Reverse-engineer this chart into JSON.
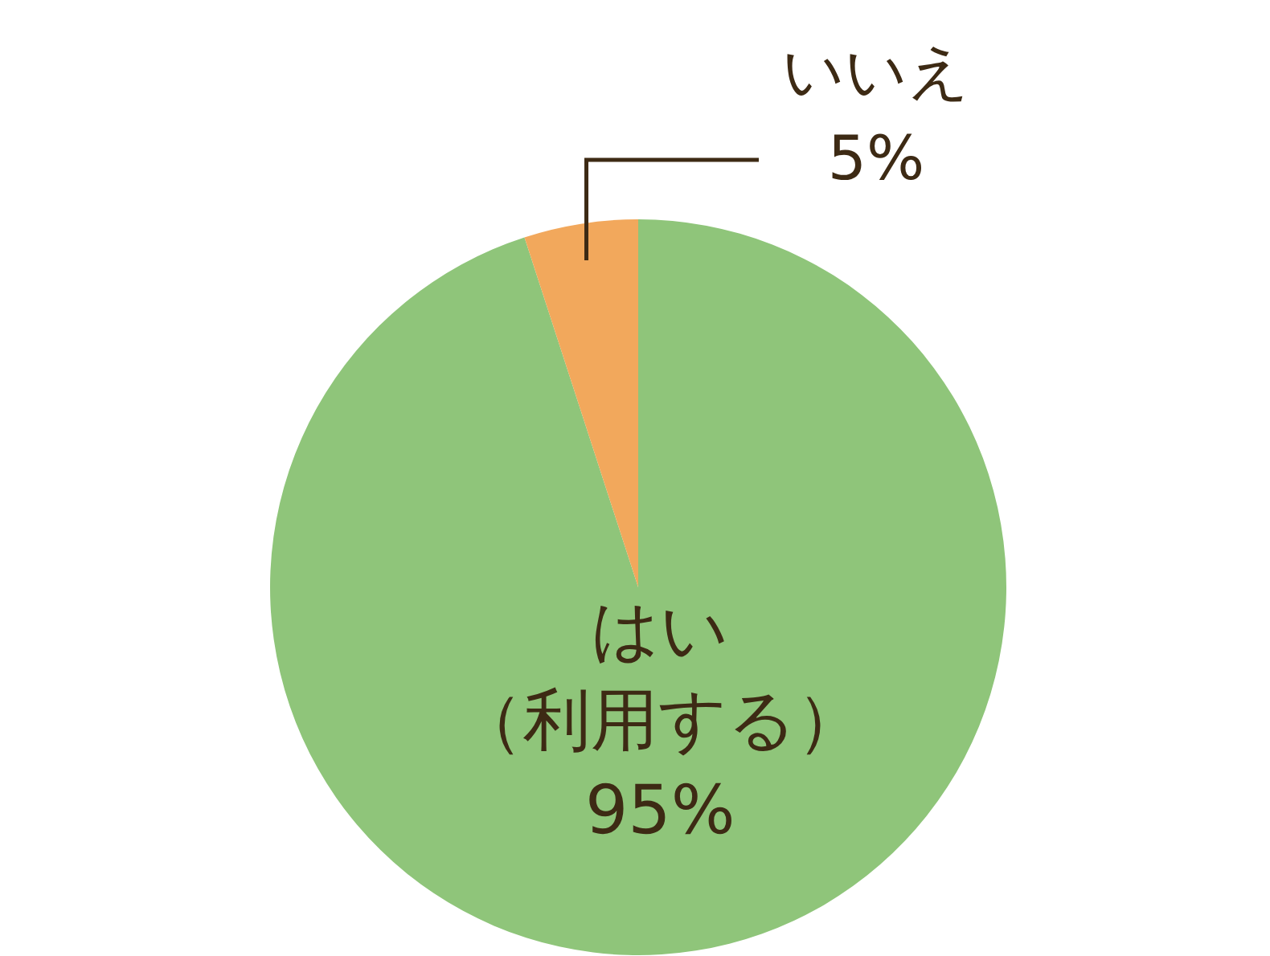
{
  "chart_data": {
    "type": "pie",
    "categories": [
      "はい（利用する）",
      "いいえ"
    ],
    "values": [
      95,
      5
    ],
    "value_labels": [
      "95%",
      "5%"
    ],
    "colors": [
      "#8fc57a",
      "#f2a85c"
    ],
    "legend": false
  }
}
